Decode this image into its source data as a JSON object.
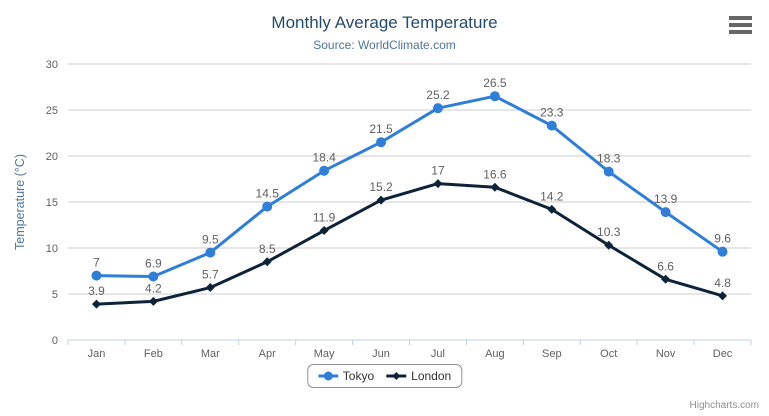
{
  "chart": {
    "title": "Monthly Average Temperature",
    "subtitle": "Source: WorldClimate.com",
    "credits": "Highcharts.com"
  },
  "chart_data": {
    "type": "line",
    "title": "Monthly Average Temperature",
    "subtitle": "Source: WorldClimate.com",
    "xlabel": "",
    "ylabel": "Temperature (°C)",
    "categories": [
      "Jan",
      "Feb",
      "Mar",
      "Apr",
      "May",
      "Jun",
      "Jul",
      "Aug",
      "Sep",
      "Oct",
      "Nov",
      "Dec"
    ],
    "series": [
      {
        "name": "Tokyo",
        "color": "#2f7ed8",
        "marker": "circle",
        "values": [
          7,
          6.9,
          9.5,
          14.5,
          18.4,
          21.5,
          25.2,
          26.5,
          23.3,
          18.3,
          13.9,
          9.6
        ]
      },
      {
        "name": "London",
        "color": "#0d233a",
        "marker": "diamond",
        "values": [
          3.9,
          4.2,
          5.7,
          8.5,
          11.9,
          15.2,
          17,
          16.6,
          14.2,
          10.3,
          6.6,
          4.8
        ]
      }
    ],
    "ylim": [
      0,
      30
    ],
    "y_ticks": [
      0,
      5,
      10,
      15,
      20,
      25,
      30
    ],
    "grid": "horizontal",
    "legend_position": "bottom-center",
    "data_labels": true
  },
  "colors": {
    "grid": "#cccccc",
    "axis_line": "#c0d0e0",
    "tick": "#c0d0e0",
    "axis_labels": "#606060",
    "axis_title": "#4d759e",
    "data_labels": "#606060",
    "legend_border": "#909090",
    "legend_text": "#333333",
    "credits_text": "#909090",
    "menu_icon": "#666666"
  }
}
